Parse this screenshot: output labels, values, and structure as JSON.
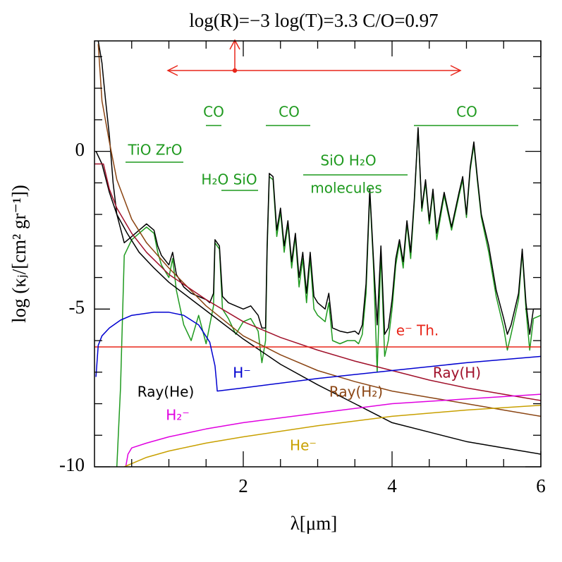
{
  "chart_data": {
    "type": "line",
    "title": "log(R)=−3 log(T)=3.3  C/O=0.97",
    "x_label": "λ[μm]",
    "y_label": "log (κⱼ/[cm² gr⁻¹])",
    "xlim": [
      0,
      6
    ],
    "ylim": [
      -10,
      3.5
    ],
    "xticks": [
      2,
      4,
      6
    ],
    "yticks": [
      -10,
      -5,
      0
    ],
    "xminor_ticks": [
      0.5,
      1,
      1.5,
      2.5,
      3,
      3.5,
      4.5,
      5,
      5.5
    ],
    "yminor_ticks": [
      -9,
      -8,
      -7,
      -6,
      -4,
      -3,
      -2,
      -1,
      1,
      2,
      3
    ],
    "series": [
      {
        "color": "#000000",
        "x": [
          0.05,
          0.1,
          0.12,
          0.15,
          0.2,
          0.25,
          0.3,
          0.4,
          0.5,
          0.6,
          0.7,
          0.8,
          0.85,
          0.9,
          1.0,
          1.05,
          1.1,
          1.2,
          1.3,
          1.4,
          1.5,
          1.55,
          1.6,
          1.62,
          1.68,
          1.72,
          1.8,
          1.9,
          2.0,
          2.1,
          2.2,
          2.25,
          2.3,
          2.32,
          2.35,
          2.4,
          2.45,
          2.5,
          2.55,
          2.6,
          2.65,
          2.7,
          2.75,
          2.8,
          2.85,
          2.9,
          2.95,
          3.0,
          3.1,
          3.15,
          3.2,
          3.3,
          3.4,
          3.5,
          3.55,
          3.6,
          3.65,
          3.7,
          3.75,
          3.8,
          3.85,
          3.9,
          3.95,
          4.0,
          4.05,
          4.1,
          4.15,
          4.2,
          4.25,
          4.3,
          4.35,
          4.4,
          4.45,
          4.5,
          4.55,
          4.6,
          4.7,
          4.8,
          4.9,
          4.95,
          5.0,
          5.05,
          5.1,
          5.15,
          5.2,
          5.3,
          5.4,
          5.5,
          5.55,
          5.6,
          5.7,
          5.75,
          5.8,
          5.85,
          5.9,
          6.0
        ],
        "values": [
          3.5,
          2.8,
          2.3,
          1.6,
          0.5,
          -1,
          -2,
          -2.9,
          -2.7,
          -2.5,
          -2.3,
          -2.5,
          -3.0,
          -3.3,
          -3.6,
          -3.2,
          -3.9,
          -4.3,
          -4.5,
          -4.6,
          -4.7,
          -4.8,
          -4.5,
          -2.8,
          -3.0,
          -4.6,
          -4.8,
          -4.9,
          -5.0,
          -4.9,
          -5.2,
          -5.6,
          -5.6,
          -3,
          -0.7,
          -0.8,
          -2.5,
          -1.8,
          -3.0,
          -2.2,
          -3.5,
          -2.6,
          -4.0,
          -3.2,
          -4.5,
          -3.2,
          -4.6,
          -4.8,
          -5.0,
          -4.5,
          -5.6,
          -5.7,
          -5.75,
          -5.7,
          -5.8,
          -5.5,
          -4.2,
          -1.2,
          -3.4,
          -5.5,
          -3.0,
          -5.8,
          -5.6,
          -4.7,
          -3.4,
          -2.8,
          -3.5,
          -2.2,
          -3.2,
          -1.5,
          0.75,
          -1.8,
          -0.9,
          -2.2,
          -1.2,
          -2.6,
          -1.3,
          -2.4,
          -1.3,
          -0.8,
          -2.0,
          -0.5,
          0.3,
          -0.9,
          -2.0,
          -3.0,
          -4.4,
          -5.3,
          -5.8,
          -5.5,
          -4.5,
          -3.1,
          -4.8,
          -5.8,
          -5.0,
          -5.0
        ]
      },
      {
        "name": "molecules",
        "color": "#1f9a1f",
        "x": [
          0.3,
          0.35,
          0.4,
          0.5,
          0.6,
          0.7,
          0.8,
          0.85,
          0.9,
          1.0,
          1.05,
          1.1,
          1.2,
          1.3,
          1.4,
          1.5,
          1.55,
          1.6,
          1.62,
          1.68,
          1.72,
          1.8,
          1.9,
          2.0,
          2.1,
          2.2,
          2.25,
          2.3,
          2.32,
          2.35,
          2.4,
          2.45,
          2.5,
          2.55,
          2.6,
          2.65,
          2.7,
          2.75,
          2.8,
          2.85,
          2.9,
          2.95,
          3.0,
          3.1,
          3.15,
          3.2,
          3.3,
          3.4,
          3.5,
          3.55,
          3.6,
          3.65,
          3.7,
          3.75,
          3.8,
          3.85,
          3.9,
          3.95,
          4.0,
          4.05,
          4.1,
          4.15,
          4.2,
          4.25,
          4.3,
          4.35,
          4.4,
          4.45,
          4.5,
          4.55,
          4.6,
          4.7,
          4.8,
          4.9,
          4.95,
          5.0,
          5.05,
          5.1,
          5.15,
          5.2,
          5.3,
          5.4,
          5.5,
          5.55,
          5.6,
          5.7,
          5.75,
          5.8,
          5.85,
          5.9,
          6.0
        ],
        "values": [
          -10,
          -7.5,
          -3.3,
          -2.8,
          -2.6,
          -2.4,
          -2.6,
          -3.2,
          -3.6,
          -4.0,
          -3.4,
          -4.4,
          -5.5,
          -6.0,
          -5.2,
          -6.1,
          -5.5,
          -4.9,
          -2.9,
          -3.1,
          -5.0,
          -5.3,
          -5.8,
          -5.4,
          -5.3,
          -5.7,
          -6.7,
          -6.0,
          -3.2,
          -0.8,
          -0.9,
          -2.7,
          -1.9,
          -3.2,
          -2.3,
          -3.7,
          -2.7,
          -4.3,
          -3.4,
          -4.8,
          -3.4,
          -5.0,
          -5.2,
          -5.4,
          -4.8,
          -6.0,
          -6.1,
          -6.0,
          -6.0,
          -6.1,
          -5.8,
          -4.5,
          -1.3,
          -3.6,
          -7.0,
          -3.2,
          -6.5,
          -6.0,
          -5.0,
          -3.6,
          -2.9,
          -3.7,
          -2.3,
          -3.4,
          -1.6,
          0.7,
          -1.9,
          -1.0,
          -2.3,
          -1.3,
          -2.8,
          -1.4,
          -2.5,
          -1.4,
          -0.9,
          -2.1,
          -0.6,
          0.2,
          -1.0,
          -2.1,
          -3.2,
          -4.6,
          -5.6,
          -6.3,
          -5.8,
          -4.7,
          -3.2,
          -5.0,
          -6.3,
          -5.3,
          -5.2
        ]
      },
      {
        "name": "Ray(He)",
        "color": "#000000",
        "x": [
          0.02,
          0.1,
          0.2,
          0.3,
          0.44,
          0.6,
          0.8,
          1.0,
          1.5,
          2.0,
          2.5,
          3.0,
          3.5,
          4.0,
          4.5,
          5.0,
          5.5,
          6.0
        ],
        "values": [
          0,
          -0.4,
          -1.3,
          -2.0,
          -2.6,
          -3.2,
          -3.7,
          -4.15,
          -5.05,
          -5.95,
          -6.75,
          -7.4,
          -8.0,
          -8.6,
          -8.9,
          -9.2,
          -9.4,
          -9.6
        ]
      },
      {
        "name": "Ray(H₂)",
        "color": "#8b4513",
        "x": [
          0.05,
          0.1,
          0.2,
          0.3,
          0.5,
          0.7,
          1.0,
          1.5,
          2.0,
          2.5,
          3.0,
          3.5,
          4.0,
          4.5,
          5.0,
          5.5,
          6.0
        ],
        "values": [
          3.4,
          1.6,
          0.3,
          -0.9,
          -2.15,
          -2.9,
          -3.7,
          -4.9,
          -5.85,
          -6.45,
          -6.95,
          -7.3,
          -7.6,
          -7.8,
          -8.0,
          -8.2,
          -8.4
        ]
      },
      {
        "name": "Ray(H)",
        "color": "#a0102a",
        "x": [
          0,
          0.12,
          0.2,
          0.3,
          0.5,
          0.7,
          1.0,
          1.5,
          2.0,
          2.5,
          3.0,
          3.5,
          4.0,
          4.5,
          5.0,
          5.5,
          6.0
        ],
        "values": [
          -0.4,
          -0.4,
          -1.2,
          -1.8,
          -2.6,
          -3.2,
          -3.9,
          -4.7,
          -5.4,
          -5.9,
          -6.3,
          -6.65,
          -6.95,
          -7.25,
          -7.5,
          -7.7,
          -7.9
        ]
      },
      {
        "name": "e⁻ Th.",
        "color": "#e8261a",
        "x": [
          0,
          6
        ],
        "values": [
          -6.2,
          -6.2
        ]
      },
      {
        "name": "H⁻",
        "color": "#0000d0",
        "x": [
          0.02,
          0.05,
          0.1,
          0.2,
          0.35,
          0.5,
          0.8,
          1.0,
          1.2,
          1.4,
          1.55,
          1.62,
          1.64,
          1.65,
          2.0,
          3.0,
          4.0,
          5.0,
          6.0
        ],
        "values": [
          -7.15,
          -6.15,
          -5.85,
          -5.6,
          -5.35,
          -5.2,
          -5.1,
          -5.1,
          -5.2,
          -5.5,
          -6.05,
          -6.8,
          -7.3,
          -7.6,
          -7.5,
          -7.2,
          -6.95,
          -6.7,
          -6.5
        ]
      },
      {
        "name": "H₂⁻",
        "color": "#e000e0",
        "x": [
          0.42,
          0.45,
          0.5,
          0.7,
          1.0,
          1.5,
          2.0,
          3.0,
          4.0,
          5.0,
          6.0
        ],
        "values": [
          -10,
          -9.6,
          -9.4,
          -9.25,
          -9.05,
          -8.8,
          -8.6,
          -8.3,
          -8.0,
          -7.85,
          -7.7
        ],
        "value_labels": null
      },
      {
        "name": "He⁻",
        "color": "#c8a000",
        "x": [
          0.4,
          0.7,
          1.0,
          1.5,
          2.0,
          3.0,
          4.0,
          5.0,
          6.0
        ],
        "values": [
          -10,
          -9.7,
          -9.5,
          -9.25,
          -9.05,
          -8.7,
          -8.4,
          -8.2,
          -8.05
        ]
      }
    ],
    "annotations": [
      {
        "text": "CO",
        "color": "#1f9a1f"
      },
      {
        "text": "CO",
        "color": "#1f9a1f"
      },
      {
        "text": "CO",
        "color": "#1f9a1f"
      },
      {
        "text": "TiO ZrO",
        "color": "#1f9a1f"
      },
      {
        "text": "H₂O SiO",
        "color": "#1f9a1f"
      },
      {
        "text": "SiO H₂O",
        "color": "#1f9a1f"
      }
    ]
  }
}
